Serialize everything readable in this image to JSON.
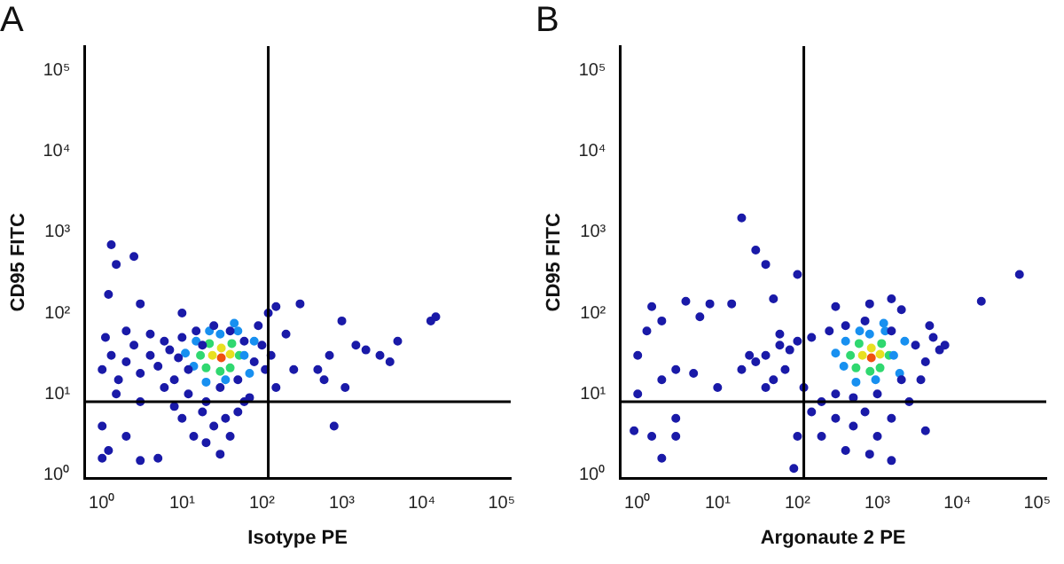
{
  "chart_data": [
    {
      "type": "scatter",
      "title": "A",
      "xlabel": "Isotype PE",
      "ylabel": "CD95 FITC",
      "log": "xy",
      "grid": false,
      "legend": false,
      "marker": "circle",
      "xlim": [
        0.6,
        130000
      ],
      "ylim": [
        0.9,
        200000
      ],
      "xticks": [
        {
          "value": 1,
          "label": "10⁰"
        },
        {
          "value": 10,
          "label": "10¹"
        },
        {
          "value": 100,
          "label": "10²"
        },
        {
          "value": 1000,
          "label": "10³"
        },
        {
          "value": 10000,
          "label": "10⁴"
        },
        {
          "value": 100000,
          "label": "10⁵"
        }
      ],
      "yticks": [
        {
          "value": 1,
          "label": "10⁰"
        },
        {
          "value": 10,
          "label": "10¹"
        },
        {
          "value": 100,
          "label": "10²"
        },
        {
          "value": 1000,
          "label": "10³"
        },
        {
          "value": 10000,
          "label": "10⁴"
        },
        {
          "value": 100000,
          "label": "10⁵"
        }
      ],
      "ref_lines": [
        {
          "axis": "x",
          "value": 120,
          "color": "#000000"
        },
        {
          "axis": "y",
          "value": 8,
          "color": "#000000"
        }
      ],
      "series": [
        {
          "color": "#1a1aa8",
          "x": [
            1,
            1.3,
            1.6,
            2,
            2.5,
            3,
            4,
            5,
            6,
            7,
            1.1,
            1.5,
            2,
            3,
            8,
            10,
            12,
            15,
            20,
            25,
            30,
            40,
            50,
            60,
            80,
            100,
            90,
            70,
            50,
            35,
            25,
            18,
            14,
            10,
            8,
            40,
            60,
            1,
            1.2,
            2,
            3,
            1,
            5,
            20,
            30,
            12,
            18,
            6,
            4,
            9,
            110,
            130,
            150,
            200,
            120,
            1.3,
            1.5,
            2.5,
            1.2,
            3,
            10,
            300,
            150,
            1000,
            500,
            700,
            1500,
            3000,
            4000,
            13000,
            15000,
            800,
            2000,
            1100,
            600,
            5000,
            250
          ],
          "values": [
            20,
            30,
            15,
            25,
            40,
            18,
            30,
            22,
            12,
            35,
            50,
            10,
            60,
            8,
            15,
            50,
            10,
            60,
            8,
            70,
            12,
            60,
            15,
            45,
            25,
            40,
            70,
            9,
            6,
            5,
            4,
            6,
            3,
            5,
            7,
            3,
            8,
            4,
            2,
            3,
            1.5,
            1.6,
            1.6,
            2.5,
            1.8,
            20,
            40,
            45,
            55,
            28,
            20,
            30,
            12,
            55,
            100,
            700,
            400,
            500,
            170,
            130,
            100,
            130,
            120,
            80,
            20,
            30,
            40,
            30,
            25,
            80,
            90,
            4,
            35,
            12,
            15,
            45,
            20
          ]
        },
        {
          "color": "#1890f0",
          "x": [
            11,
            14,
            15,
            22,
            35,
            50,
            60,
            70,
            45,
            20,
            80,
            30
          ],
          "values": [
            32,
            22,
            45,
            60,
            15,
            60,
            30,
            18,
            75,
            14,
            45,
            55
          ]
        },
        {
          "color": "#30d870",
          "x": [
            17,
            22,
            30,
            42,
            52,
            40,
            20
          ],
          "values": [
            30,
            42,
            19,
            42,
            30,
            21,
            21
          ]
        },
        {
          "color": "#e8e020",
          "x": [
            24,
            40,
            31
          ],
          "values": [
            30,
            31,
            37
          ]
        },
        {
          "color": "#f05010",
          "x": [
            31
          ],
          "values": [
            28
          ]
        }
      ]
    },
    {
      "type": "scatter",
      "title": "B",
      "xlabel": "Argonaute 2 PE",
      "ylabel": "CD95 FITC",
      "log": "xy",
      "grid": false,
      "legend": false,
      "marker": "circle",
      "xlim": [
        0.6,
        130000
      ],
      "ylim": [
        0.9,
        200000
      ],
      "xticks": [
        {
          "value": 1,
          "label": "10⁰"
        },
        {
          "value": 10,
          "label": "10¹"
        },
        {
          "value": 100,
          "label": "10²"
        },
        {
          "value": 1000,
          "label": "10³"
        },
        {
          "value": 10000,
          "label": "10⁴"
        },
        {
          "value": 100000,
          "label": "10⁵"
        }
      ],
      "yticks": [
        {
          "value": 1,
          "label": "10⁰"
        },
        {
          "value": 10,
          "label": "10¹"
        },
        {
          "value": 100,
          "label": "10²"
        },
        {
          "value": 1000,
          "label": "10³"
        },
        {
          "value": 10000,
          "label": "10⁴"
        },
        {
          "value": 100000,
          "label": "10⁵"
        }
      ],
      "ref_lines": [
        {
          "axis": "x",
          "value": 120,
          "color": "#000000"
        },
        {
          "axis": "y",
          "value": 8,
          "color": "#000000"
        }
      ],
      "series": [
        {
          "color": "#1a1aa8",
          "x": [
            30,
            40,
            50,
            60,
            70,
            80,
            100,
            120,
            150,
            200,
            250,
            300,
            400,
            500,
            700,
            1000,
            1500,
            2000,
            3000,
            4000,
            5000,
            3500,
            2500,
            1500,
            1000,
            700,
            500,
            400,
            300,
            200,
            1500,
            800,
            100,
            150,
            90,
            20,
            25,
            40,
            60,
            6000,
            4500,
            300,
            800,
            1500,
            2000,
            1,
            1.3,
            1.5,
            2,
            3,
            4,
            2,
            1,
            5,
            6,
            8,
            15,
            20,
            30,
            40,
            50,
            3,
            3,
            2,
            1.5,
            100,
            60000,
            20000,
            7000,
            0.9,
            10,
            4000
          ],
          "values": [
            25,
            30,
            15,
            40,
            20,
            35,
            45,
            12,
            50,
            8,
            60,
            10,
            70,
            9,
            80,
            10,
            60,
            15,
            40,
            25,
            50,
            15,
            8,
            5,
            3,
            6,
            4,
            2,
            5,
            3,
            1.5,
            1.8,
            3,
            6,
            1.2,
            20,
            30,
            12,
            55,
            35,
            70,
            120,
            130,
            150,
            110,
            30,
            60,
            120,
            80,
            20,
            140,
            15,
            10,
            18,
            90,
            130,
            130,
            1500,
            600,
            400,
            150,
            5,
            3,
            1.6,
            3,
            300,
            300,
            140,
            40,
            3.5,
            12,
            3.5
          ]
        },
        {
          "color": "#1890f0",
          "x": [
            300,
            380,
            400,
            600,
            950,
            1250,
            1600,
            1900,
            1200,
            540,
            2200,
            800
          ],
          "values": [
            32,
            22,
            45,
            60,
            15,
            60,
            30,
            18,
            75,
            14,
            45,
            55
          ]
        },
        {
          "color": "#30d870",
          "x": [
            460,
            590,
            810,
            1130,
            1400,
            1080,
            540
          ],
          "values": [
            30,
            42,
            19,
            42,
            30,
            21,
            21
          ]
        },
        {
          "color": "#e8e020",
          "x": [
            650,
            1080,
            840
          ],
          "values": [
            30,
            31,
            37
          ]
        },
        {
          "color": "#f05010",
          "x": [
            840
          ],
          "values": [
            28
          ]
        }
      ]
    }
  ]
}
